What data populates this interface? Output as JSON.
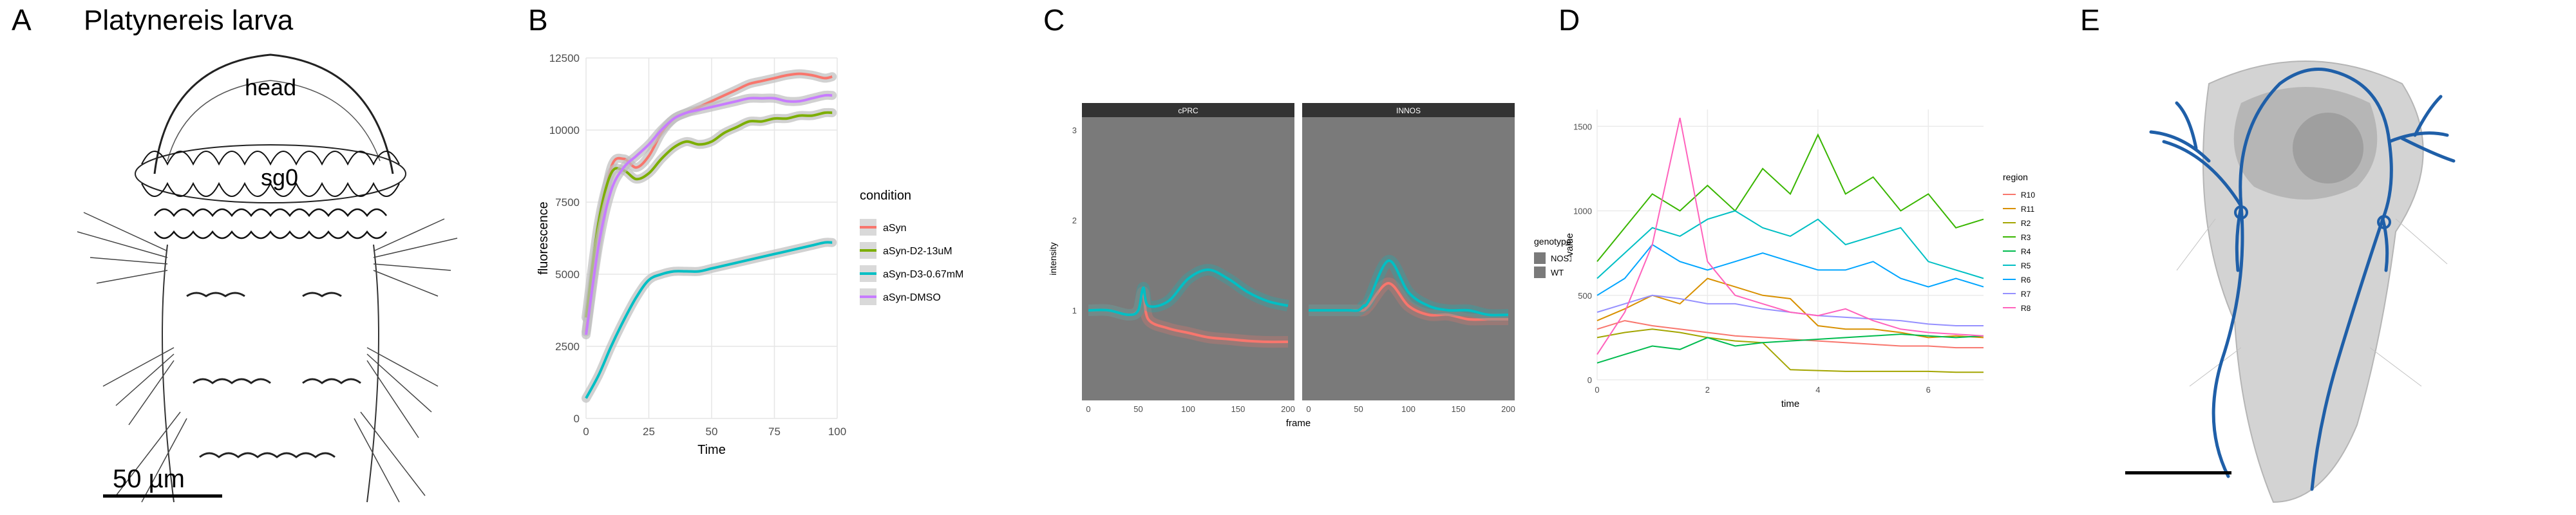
{
  "figure": {
    "panels": {
      "A": {
        "letter": "A",
        "title": "Platynereis larva",
        "label_head": "head",
        "label_sg0": "sg0",
        "scale_text": "50 µm"
      },
      "B": {
        "letter": "B",
        "chart_index": 0
      },
      "C": {
        "letter": "C",
        "chart_index": 1
      },
      "D": {
        "letter": "D",
        "chart_index": 2
      },
      "E": {
        "letter": "E"
      }
    }
  },
  "chart_data": [
    {
      "panel": "B",
      "type": "line",
      "xlabel": "Time",
      "ylabel": "fluorescence",
      "xlim": [
        0,
        100
      ],
      "ylim": [
        0,
        12500
      ],
      "xticks": [
        0,
        25,
        50,
        75,
        100
      ],
      "yticks": [
        0,
        2500,
        5000,
        7500,
        10000,
        12500
      ],
      "grid": true,
      "legend_title": "condition",
      "legend_position": "right",
      "x": [
        0,
        5,
        10,
        15,
        20,
        25,
        30,
        35,
        40,
        45,
        50,
        55,
        60,
        65,
        70,
        75,
        80,
        85,
        90,
        95,
        98
      ],
      "series": [
        {
          "name": "aSyn",
          "color": "#F8766D",
          "values": [
            3000,
            6300,
            8700,
            9000,
            8700,
            9100,
            9900,
            10400,
            10600,
            10800,
            11000,
            11200,
            11400,
            11600,
            11700,
            11800,
            11900,
            11950,
            11900,
            11800,
            11850
          ]
        },
        {
          "name": "aSyn-D2-13uM",
          "color": "#7CAE00",
          "values": [
            3500,
            6800,
            8500,
            8600,
            8300,
            8500,
            9000,
            9400,
            9600,
            9500,
            9600,
            9900,
            10100,
            10300,
            10300,
            10400,
            10400,
            10500,
            10500,
            10600,
            10600
          ]
        },
        {
          "name": "aSyn-D3-0.67mM",
          "color": "#00BFC4",
          "values": [
            700,
            1500,
            2500,
            3400,
            4200,
            4800,
            5000,
            5100,
            5100,
            5100,
            5200,
            5300,
            5400,
            5500,
            5600,
            5700,
            5800,
            5900,
            6000,
            6100,
            6100
          ]
        },
        {
          "name": "aSyn-DMSO",
          "color": "#C77CFF",
          "values": [
            2900,
            6000,
            7900,
            8700,
            9100,
            9500,
            10000,
            10400,
            10600,
            10700,
            10800,
            10900,
            11000,
            11100,
            11100,
            11100,
            11000,
            11000,
            11100,
            11200,
            11200
          ]
        }
      ]
    },
    {
      "panel": "C",
      "type": "line",
      "facets": [
        "cPRC",
        "INNOS"
      ],
      "xlabel": "frame",
      "ylabel": "intensity",
      "xlim": [
        0,
        200
      ],
      "ylim": [
        0,
        3
      ],
      "xticks": [
        0,
        50,
        100,
        150,
        200
      ],
      "yticks": [
        1,
        2,
        3
      ],
      "grid": true,
      "legend_title": "genotype",
      "legend_position": "right",
      "series_legend": [
        {
          "name": "NOS11",
          "color": "#F8766D"
        },
        {
          "name": "WT",
          "color": "#00BFC4"
        }
      ],
      "x": [
        0,
        20,
        40,
        50,
        55,
        60,
        80,
        100,
        120,
        140,
        160,
        180,
        200
      ],
      "facet_series": [
        [
          {
            "name": "NOS11",
            "values": [
              1.0,
              1.0,
              0.95,
              1.0,
              1.2,
              0.9,
              0.8,
              0.75,
              0.7,
              0.68,
              0.66,
              0.65,
              0.65
            ]
          },
          {
            "name": "WT",
            "values": [
              1.0,
              1.0,
              0.95,
              1.0,
              1.25,
              1.05,
              1.1,
              1.35,
              1.45,
              1.35,
              1.2,
              1.1,
              1.05
            ]
          }
        ],
        [
          {
            "name": "NOS11",
            "values": [
              1.0,
              1.0,
              1.0,
              1.0,
              1.0,
              1.05,
              1.3,
              1.05,
              0.95,
              0.95,
              0.9,
              0.9,
              0.9
            ]
          },
          {
            "name": "WT",
            "values": [
              1.0,
              1.0,
              1.0,
              1.0,
              1.05,
              1.1,
              1.55,
              1.2,
              1.05,
              1.0,
              1.0,
              0.95,
              0.95
            ]
          }
        ]
      ]
    },
    {
      "panel": "D",
      "type": "line",
      "xlabel": "time",
      "ylabel": "value",
      "xlim": [
        0,
        7
      ],
      "ylim": [
        0,
        1600
      ],
      "xticks": [
        0,
        2,
        4,
        6
      ],
      "yticks": [
        0,
        500,
        1000,
        1500
      ],
      "grid": true,
      "legend_title": "region",
      "legend_position": "right",
      "x": [
        0,
        0.5,
        1,
        1.5,
        2,
        2.5,
        3,
        3.5,
        4,
        4.5,
        5,
        5.5,
        6,
        6.5,
        7
      ],
      "series": [
        {
          "name": "R10",
          "color": "#F8766D",
          "values": [
            300,
            350,
            320,
            300,
            280,
            260,
            250,
            240,
            230,
            220,
            210,
            200,
            200,
            190,
            190
          ]
        },
        {
          "name": "R11",
          "color": "#D89000",
          "values": [
            350,
            420,
            500,
            450,
            600,
            550,
            500,
            480,
            320,
            300,
            300,
            280,
            250,
            260,
            250
          ]
        },
        {
          "name": "R2",
          "color": "#A3A500",
          "values": [
            250,
            280,
            300,
            280,
            250,
            230,
            220,
            60,
            55,
            50,
            50,
            50,
            50,
            45,
            45
          ]
        },
        {
          "name": "R3",
          "color": "#39B600",
          "values": [
            700,
            900,
            1100,
            1000,
            1150,
            1000,
            1250,
            1100,
            1450,
            1100,
            1200,
            1000,
            1100,
            900,
            950
          ]
        },
        {
          "name": "R4",
          "color": "#00BB4E",
          "values": [
            100,
            150,
            200,
            180,
            250,
            200,
            220,
            230,
            240,
            250,
            260,
            270,
            260,
            250,
            260
          ]
        },
        {
          "name": "R5",
          "color": "#00BFC4",
          "values": [
            600,
            750,
            900,
            850,
            950,
            1000,
            900,
            850,
            950,
            800,
            850,
            900,
            700,
            650,
            600
          ]
        },
        {
          "name": "R6",
          "color": "#00A5FF",
          "values": [
            500,
            600,
            800,
            700,
            650,
            700,
            750,
            700,
            650,
            650,
            700,
            600,
            550,
            600,
            550
          ]
        },
        {
          "name": "R7",
          "color": "#9590FF",
          "values": [
            400,
            450,
            500,
            480,
            450,
            450,
            420,
            400,
            380,
            370,
            360,
            350,
            330,
            320,
            320
          ]
        },
        {
          "name": "R8",
          "color": "#FF62BC",
          "values": [
            150,
            400,
            800,
            1550,
            700,
            500,
            450,
            400,
            380,
            420,
            350,
            300,
            280,
            270,
            260
          ]
        }
      ]
    }
  ]
}
